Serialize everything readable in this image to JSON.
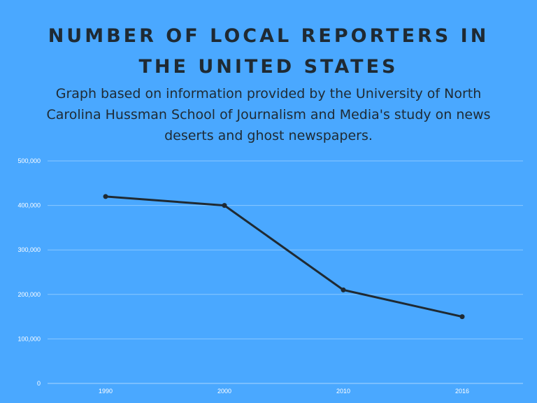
{
  "header": {
    "title_line1": "NUMBER OF LOCAL REPORTERS IN",
    "title_line2": "THE UNITED STATES",
    "subtitle": "Graph based on information provided by the University of North Carolina Hussman School of Journalism and Media's study on news deserts and ghost newspapers."
  },
  "colors": {
    "background": "#4aa8ff",
    "line": "#1f2a33",
    "text": "#1f2a33",
    "tick_text": "#ffffff"
  },
  "chart_data": {
    "type": "line",
    "title": "NUMBER OF LOCAL REPORTERS IN THE UNITED STATES",
    "categories": [
      "1990",
      "2000",
      "2010",
      "2016"
    ],
    "values": [
      420000,
      400000,
      210000,
      150000
    ],
    "y_ticks": [
      "0",
      "100,000",
      "200,000",
      "300,000",
      "400,000",
      "500,000"
    ],
    "ylim": [
      0,
      500000
    ],
    "grid": true,
    "legend": "none"
  }
}
